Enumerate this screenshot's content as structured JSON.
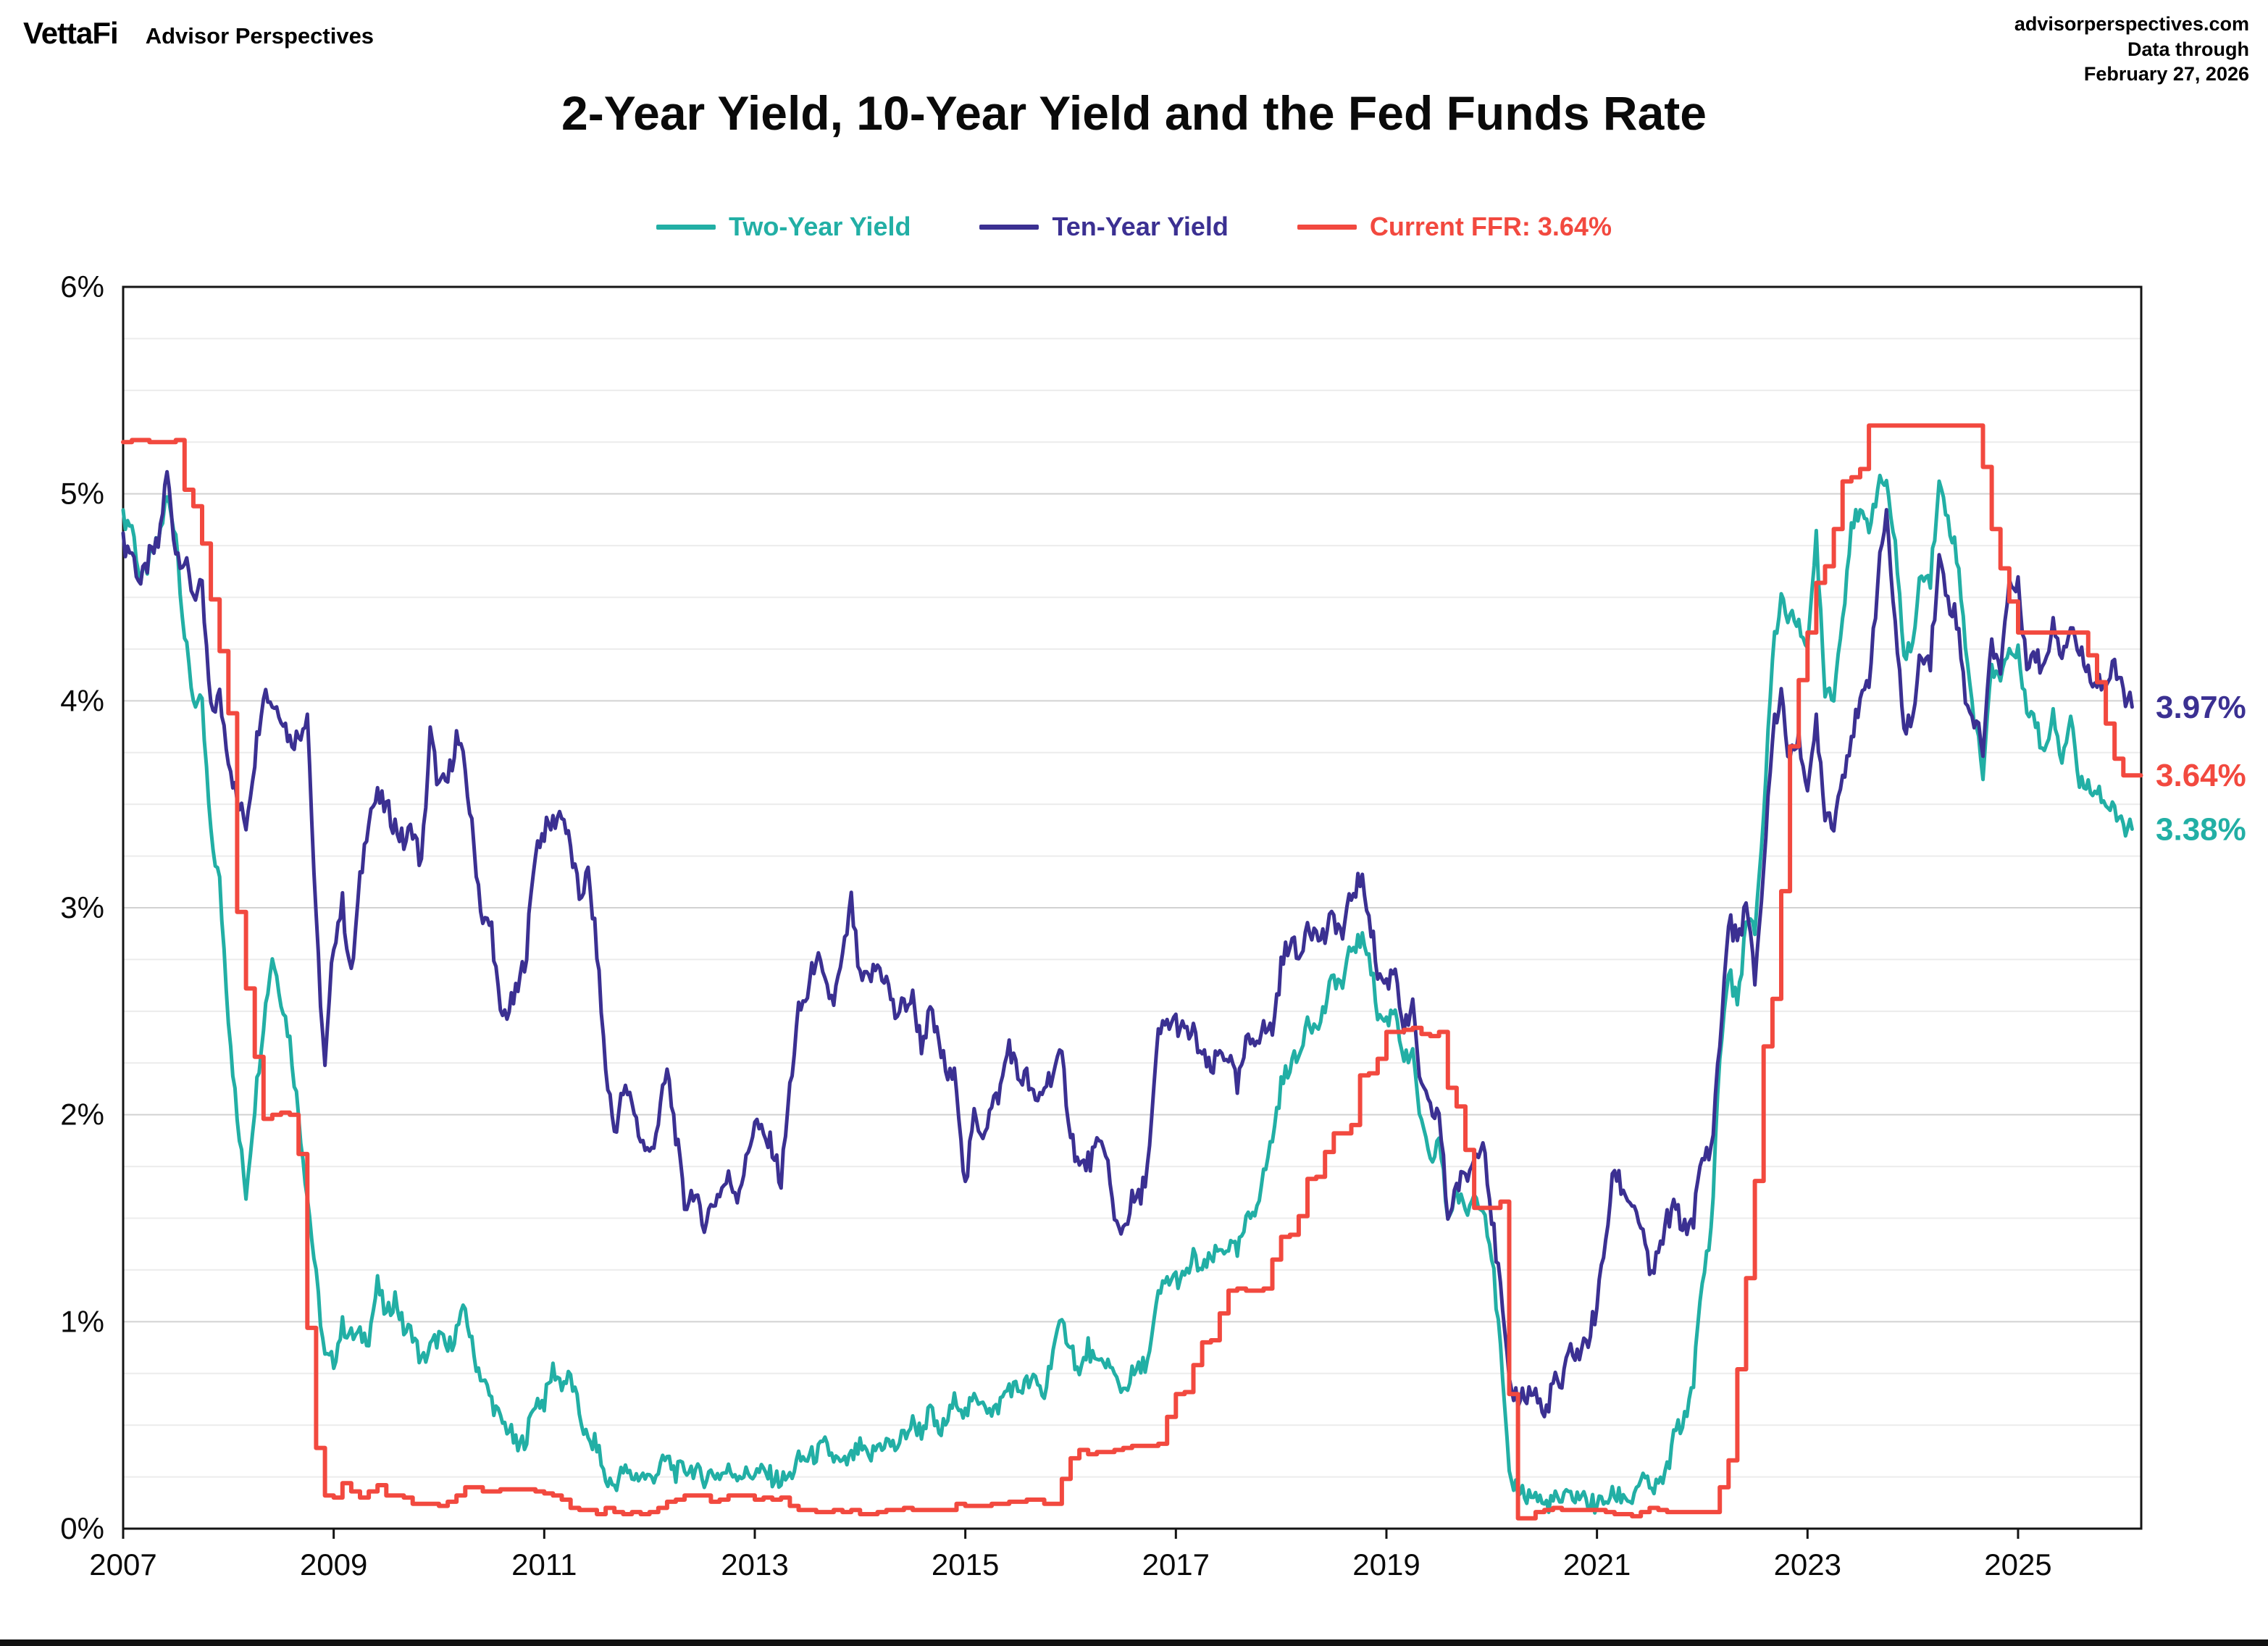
{
  "header": {
    "logo_text": "VettaFi",
    "logo_sub": "Advisor Perspectives",
    "source": "advisorperspectives.com",
    "data_through_label": "Data through",
    "data_through_date": "February 27, 2026"
  },
  "chart_data": {
    "type": "line",
    "title": "2-Year Yield, 10-Year Yield and the Fed Funds Rate",
    "x_start": 2007.0,
    "x_end": 2026.17,
    "ylim": [
      0,
      6
    ],
    "grid": "on",
    "legend_position": "top-center",
    "y_ticks": [
      "0%",
      "1%",
      "2%",
      "3%",
      "4%",
      "5%",
      "6%"
    ],
    "x_ticks": [
      2007,
      2009,
      2011,
      2013,
      2015,
      2017,
      2019,
      2021,
      2023,
      2025
    ],
    "legend": [
      {
        "label": "Two-Year Yield",
        "color": "#22AFA5"
      },
      {
        "label": "Ten-Year Yield",
        "color": "#3B3092"
      },
      {
        "label": "Current FFR: 3.64%",
        "color": "#F2493F"
      }
    ],
    "end_labels": [
      {
        "text": "3.97%",
        "value": 3.97,
        "color": "#3B3092"
      },
      {
        "text": "3.64%",
        "value": 3.64,
        "color": "#F2493F"
      },
      {
        "text": "3.38%",
        "value": 3.38,
        "color": "#22AFA5"
      }
    ],
    "series": [
      {
        "name": "two-year-yield",
        "color": "#22AFA5",
        "width": 5,
        "style": "line",
        "noise": 0.05,
        "start_month": "2007-01",
        "step_months": 1,
        "values": [
          4.88,
          4.85,
          4.57,
          4.67,
          4.77,
          4.98,
          4.82,
          4.31,
          4.01,
          3.97,
          3.34,
          3.12,
          2.48,
          1.97,
          1.62,
          2.05,
          2.45,
          2.77,
          2.57,
          2.36,
          2.0,
          1.61,
          1.21,
          0.82,
          0.81,
          0.98,
          0.93,
          0.93,
          0.93,
          1.18,
          1.02,
          1.12,
          0.96,
          0.95,
          0.8,
          0.87,
          0.93,
          0.86,
          0.96,
          1.06,
          0.83,
          0.72,
          0.62,
          0.52,
          0.48,
          0.38,
          0.45,
          0.62,
          0.61,
          0.77,
          0.7,
          0.73,
          0.56,
          0.41,
          0.41,
          0.23,
          0.21,
          0.28,
          0.25,
          0.26,
          0.24,
          0.28,
          0.34,
          0.27,
          0.29,
          0.29,
          0.24,
          0.27,
          0.26,
          0.28,
          0.27,
          0.26,
          0.27,
          0.27,
          0.25,
          0.23,
          0.25,
          0.33,
          0.34,
          0.36,
          0.4,
          0.34,
          0.3,
          0.34,
          0.39,
          0.33,
          0.4,
          0.42,
          0.39,
          0.45,
          0.51,
          0.47,
          0.57,
          0.45,
          0.53,
          0.64,
          0.55,
          0.62,
          0.64,
          0.54,
          0.61,
          0.69,
          0.67,
          0.7,
          0.71,
          0.64,
          0.88,
          0.98,
          0.9,
          0.73,
          0.88,
          0.77,
          0.82,
          0.73,
          0.67,
          0.74,
          0.77,
          0.84,
          1.12,
          1.2,
          1.21,
          1.2,
          1.31,
          1.24,
          1.3,
          1.34,
          1.37,
          1.33,
          1.47,
          1.55,
          1.7,
          1.89,
          2.14,
          2.25,
          2.27,
          2.49,
          2.4,
          2.52,
          2.67,
          2.62,
          2.81,
          2.84,
          2.8,
          2.48,
          2.45,
          2.52,
          2.27,
          2.27,
          1.95,
          1.75,
          1.89,
          1.5,
          1.63,
          1.52,
          1.61,
          1.58,
          1.33,
          0.86,
          0.23,
          0.2,
          0.16,
          0.16,
          0.11,
          0.14,
          0.13,
          0.16,
          0.16,
          0.13,
          0.11,
          0.14,
          0.16,
          0.16,
          0.14,
          0.25,
          0.19,
          0.2,
          0.28,
          0.48,
          0.52,
          0.73,
          1.18,
          1.44,
          2.28,
          2.7,
          2.53,
          2.92,
          2.89,
          3.45,
          4.22,
          4.51,
          4.38,
          4.41,
          4.21,
          4.81,
          4.06,
          4.04,
          4.4,
          4.87,
          4.88,
          4.85,
          5.03,
          5.07,
          4.73,
          4.23,
          4.27,
          4.64,
          4.59,
          5.04,
          4.89,
          4.71,
          4.29,
          3.91,
          3.66,
          4.16,
          4.13,
          4.24,
          4.22,
          3.99,
          3.89,
          3.74,
          3.96,
          3.72,
          3.94,
          3.59,
          3.6,
          3.58,
          3.5,
          3.45,
          3.4,
          3.38
        ]
      },
      {
        "name": "ten-year-yield",
        "color": "#3B3092",
        "width": 5,
        "style": "line",
        "noise": 0.06,
        "start_month": "2007-01",
        "step_months": 1,
        "values": [
          4.76,
          4.72,
          4.56,
          4.69,
          4.75,
          5.1,
          4.73,
          4.67,
          4.52,
          4.53,
          3.94,
          4.02,
          3.74,
          3.51,
          3.41,
          3.73,
          4.06,
          3.99,
          3.95,
          3.81,
          3.83,
          3.95,
          2.92,
          2.21,
          2.84,
          3.02,
          2.66,
          3.12,
          3.46,
          3.53,
          3.48,
          3.4,
          3.31,
          3.39,
          3.2,
          3.84,
          3.58,
          3.61,
          3.83,
          3.66,
          3.29,
          2.93,
          2.91,
          2.47,
          2.51,
          2.6,
          2.8,
          3.29,
          3.37,
          3.41,
          3.47,
          3.28,
          3.05,
          3.16,
          2.8,
          2.22,
          1.92,
          2.11,
          2.07,
          1.88,
          1.8,
          1.97,
          2.21,
          1.91,
          1.56,
          1.64,
          1.47,
          1.55,
          1.63,
          1.69,
          1.62,
          1.76,
          1.98,
          1.88,
          1.85,
          1.67,
          2.13,
          2.49,
          2.58,
          2.78,
          2.61,
          2.55,
          2.74,
          3.03,
          2.64,
          2.65,
          2.72,
          2.65,
          2.48,
          2.53,
          2.56,
          2.34,
          2.49,
          2.34,
          2.18,
          2.17,
          1.64,
          1.99,
          1.92,
          2.03,
          2.12,
          2.35,
          2.18,
          2.18,
          2.04,
          2.14,
          2.21,
          2.27,
          1.92,
          1.74,
          1.77,
          1.83,
          1.85,
          1.47,
          1.45,
          1.58,
          1.59,
          1.83,
          2.38,
          2.44,
          2.45,
          2.39,
          2.39,
          2.28,
          2.2,
          2.3,
          2.29,
          2.12,
          2.33,
          2.38,
          2.41,
          2.41,
          2.71,
          2.86,
          2.74,
          2.95,
          2.86,
          2.86,
          2.96,
          2.86,
          3.06,
          3.14,
          2.99,
          2.68,
          2.63,
          2.72,
          2.41,
          2.5,
          2.12,
          2.01,
          2.01,
          1.5,
          1.66,
          1.69,
          1.78,
          1.92,
          1.51,
          1.15,
          0.67,
          0.64,
          0.65,
          0.66,
          0.53,
          0.71,
          0.68,
          0.87,
          0.84,
          0.92,
          1.07,
          1.41,
          1.74,
          1.63,
          1.58,
          1.47,
          1.22,
          1.31,
          1.49,
          1.55,
          1.44,
          1.51,
          1.78,
          1.83,
          2.34,
          2.94,
          2.84,
          3.01,
          2.65,
          3.19,
          3.83,
          4.05,
          3.68,
          3.87,
          3.51,
          3.92,
          3.47,
          3.42,
          3.64,
          3.84,
          3.96,
          4.11,
          4.57,
          4.93,
          4.33,
          3.88,
          3.91,
          4.25,
          4.2,
          4.68,
          4.5,
          4.4,
          4.03,
          3.9,
          3.78,
          4.28,
          4.17,
          4.57,
          4.54,
          4.21,
          4.21,
          4.16,
          4.4,
          4.23,
          4.37,
          4.23,
          4.15,
          4.1,
          4.08,
          4.15,
          4.05,
          3.97
        ]
      },
      {
        "name": "fed-funds-rate",
        "color": "#F2493F",
        "width": 6,
        "style": "step",
        "noise": 0,
        "start_month": "2007-01",
        "step_months": 1,
        "values": [
          5.25,
          5.26,
          5.26,
          5.25,
          5.25,
          5.25,
          5.26,
          5.02,
          4.94,
          4.76,
          4.49,
          4.24,
          3.94,
          2.98,
          2.61,
          2.28,
          1.98,
          2.0,
          2.01,
          2.0,
          1.81,
          0.97,
          0.39,
          0.16,
          0.15,
          0.22,
          0.18,
          0.15,
          0.18,
          0.21,
          0.16,
          0.16,
          0.15,
          0.12,
          0.12,
          0.12,
          0.11,
          0.13,
          0.16,
          0.2,
          0.2,
          0.18,
          0.18,
          0.19,
          0.19,
          0.19,
          0.19,
          0.18,
          0.17,
          0.16,
          0.14,
          0.1,
          0.09,
          0.09,
          0.07,
          0.1,
          0.08,
          0.07,
          0.08,
          0.07,
          0.08,
          0.1,
          0.13,
          0.14,
          0.16,
          0.16,
          0.16,
          0.13,
          0.14,
          0.16,
          0.16,
          0.16,
          0.14,
          0.15,
          0.14,
          0.15,
          0.11,
          0.09,
          0.09,
          0.08,
          0.08,
          0.09,
          0.08,
          0.09,
          0.07,
          0.07,
          0.08,
          0.09,
          0.09,
          0.1,
          0.09,
          0.09,
          0.09,
          0.09,
          0.09,
          0.12,
          0.11,
          0.11,
          0.11,
          0.12,
          0.12,
          0.13,
          0.13,
          0.14,
          0.14,
          0.12,
          0.12,
          0.24,
          0.34,
          0.38,
          0.36,
          0.37,
          0.37,
          0.38,
          0.39,
          0.4,
          0.4,
          0.4,
          0.41,
          0.54,
          0.65,
          0.66,
          0.79,
          0.9,
          0.91,
          1.04,
          1.15,
          1.16,
          1.15,
          1.15,
          1.16,
          1.3,
          1.41,
          1.42,
          1.51,
          1.69,
          1.7,
          1.82,
          1.91,
          1.91,
          1.95,
          2.19,
          2.2,
          2.27,
          2.4,
          2.4,
          2.41,
          2.42,
          2.39,
          2.38,
          2.4,
          2.13,
          2.04,
          1.83,
          1.55,
          1.55,
          1.55,
          1.58,
          0.65,
          0.05,
          0.05,
          0.08,
          0.09,
          0.1,
          0.09,
          0.09,
          0.09,
          0.09,
          0.09,
          0.08,
          0.07,
          0.07,
          0.06,
          0.08,
          0.1,
          0.09,
          0.08,
          0.08,
          0.08,
          0.08,
          0.08,
          0.08,
          0.2,
          0.33,
          0.77,
          1.21,
          1.68,
          2.33,
          2.56,
          3.08,
          3.78,
          4.1,
          4.33,
          4.57,
          4.65,
          4.83,
          5.06,
          5.08,
          5.12,
          5.33,
          5.33,
          5.33,
          5.33,
          5.33,
          5.33,
          5.33,
          5.33,
          5.33,
          5.33,
          5.33,
          5.33,
          5.33,
          5.13,
          4.83,
          4.64,
          4.48,
          4.33,
          4.33,
          4.33,
          4.33,
          4.33,
          4.33,
          4.33,
          4.33,
          4.22,
          4.09,
          3.89,
          3.72,
          3.64,
          3.64
        ]
      }
    ]
  }
}
